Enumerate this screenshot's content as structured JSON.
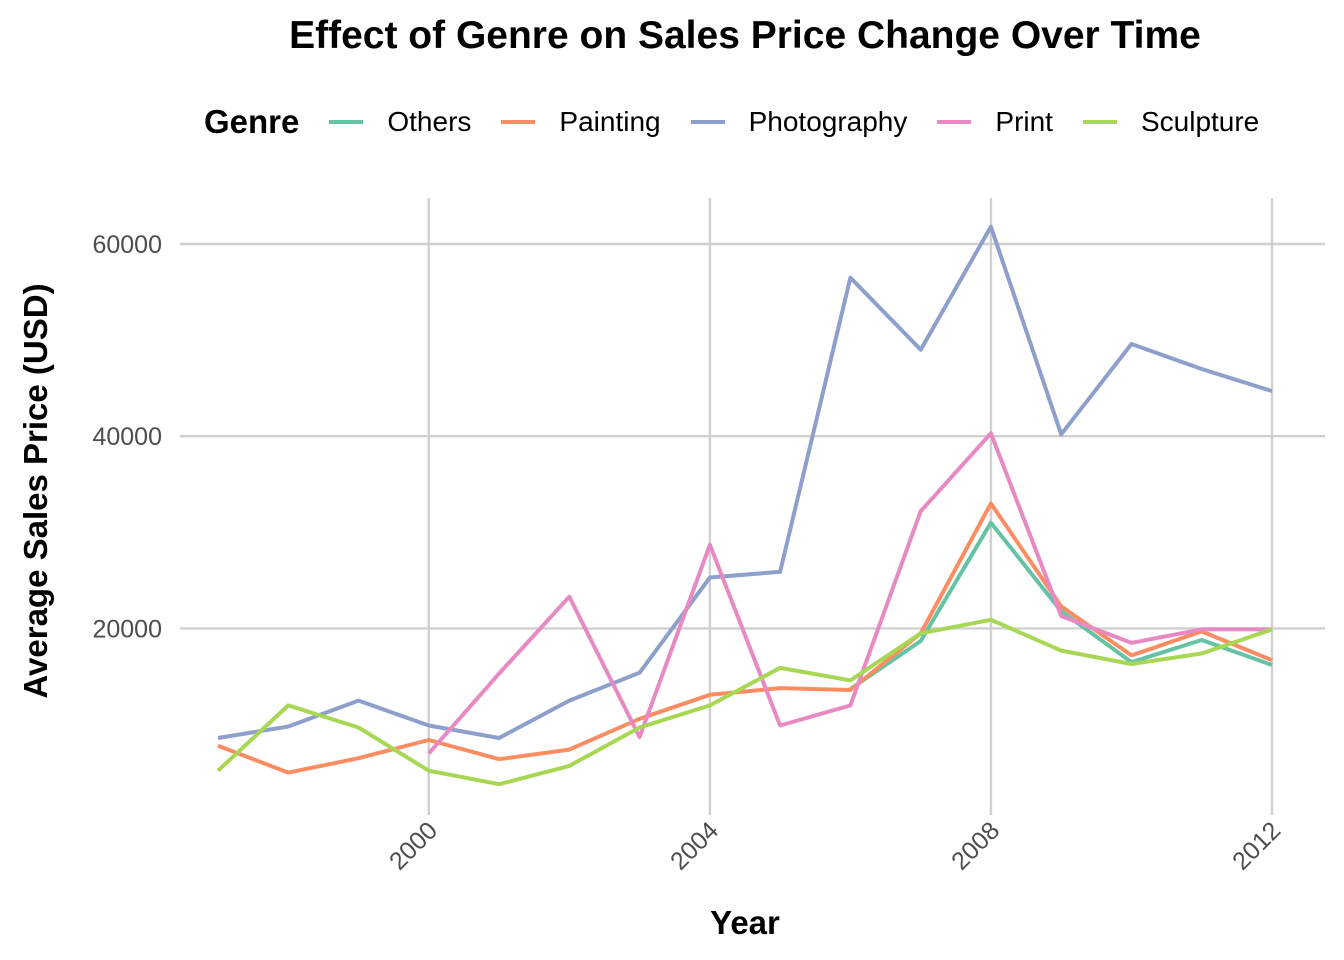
{
  "chart_data": {
    "type": "line",
    "title": "Effect of Genre on Sales Price Change Over Time",
    "xlabel": "Year",
    "ylabel": "Average Sales Price (USD)",
    "legend_title": "Genre",
    "legend_position": "top",
    "grid": true,
    "xlim": [
      1997,
      2012
    ],
    "ylim": [
      3800,
      62000
    ],
    "x_ticks": [
      2000,
      2004,
      2008,
      2012
    ],
    "y_ticks": [
      20000,
      40000,
      60000
    ],
    "x_tick_labels": [
      "2000",
      "2004",
      "2008",
      "2012"
    ],
    "y_tick_labels": [
      "20000",
      "40000",
      "60000"
    ],
    "x": [
      1997,
      1998,
      1999,
      2000,
      2001,
      2002,
      2003,
      2004,
      2005,
      2006,
      2007,
      2008,
      2009,
      2010,
      2011,
      2012
    ],
    "series": [
      {
        "name": "Others",
        "color": "#66c2a5",
        "values": [
          null,
          null,
          null,
          null,
          null,
          null,
          null,
          null,
          null,
          13700,
          18700,
          31000,
          21800,
          16500,
          18800,
          16200
        ]
      },
      {
        "name": "Painting",
        "color": "#fc8d62",
        "values": [
          7800,
          5000,
          6500,
          8400,
          6400,
          7400,
          10600,
          13100,
          13800,
          13600,
          19500,
          33000,
          22300,
          17200,
          19700,
          16700
        ]
      },
      {
        "name": "Photography",
        "color": "#8da0cb",
        "values": [
          8600,
          9800,
          12500,
          9900,
          8600,
          12500,
          15400,
          25300,
          25900,
          56500,
          49000,
          61800,
          40200,
          49600,
          47000,
          44700
        ]
      },
      {
        "name": "Print",
        "color": "#e78ac3",
        "values": [
          null,
          null,
          null,
          7000,
          15300,
          23300,
          8700,
          28700,
          9900,
          12000,
          32200,
          40300,
          21300,
          18500,
          19900,
          19900
        ]
      },
      {
        "name": "Sculpture",
        "color": "#a6d854",
        "values": [
          5200,
          12000,
          9700,
          5200,
          3800,
          5700,
          9700,
          12000,
          15900,
          14600,
          19500,
          20900,
          17700,
          16300,
          17400,
          19900
        ]
      }
    ]
  }
}
